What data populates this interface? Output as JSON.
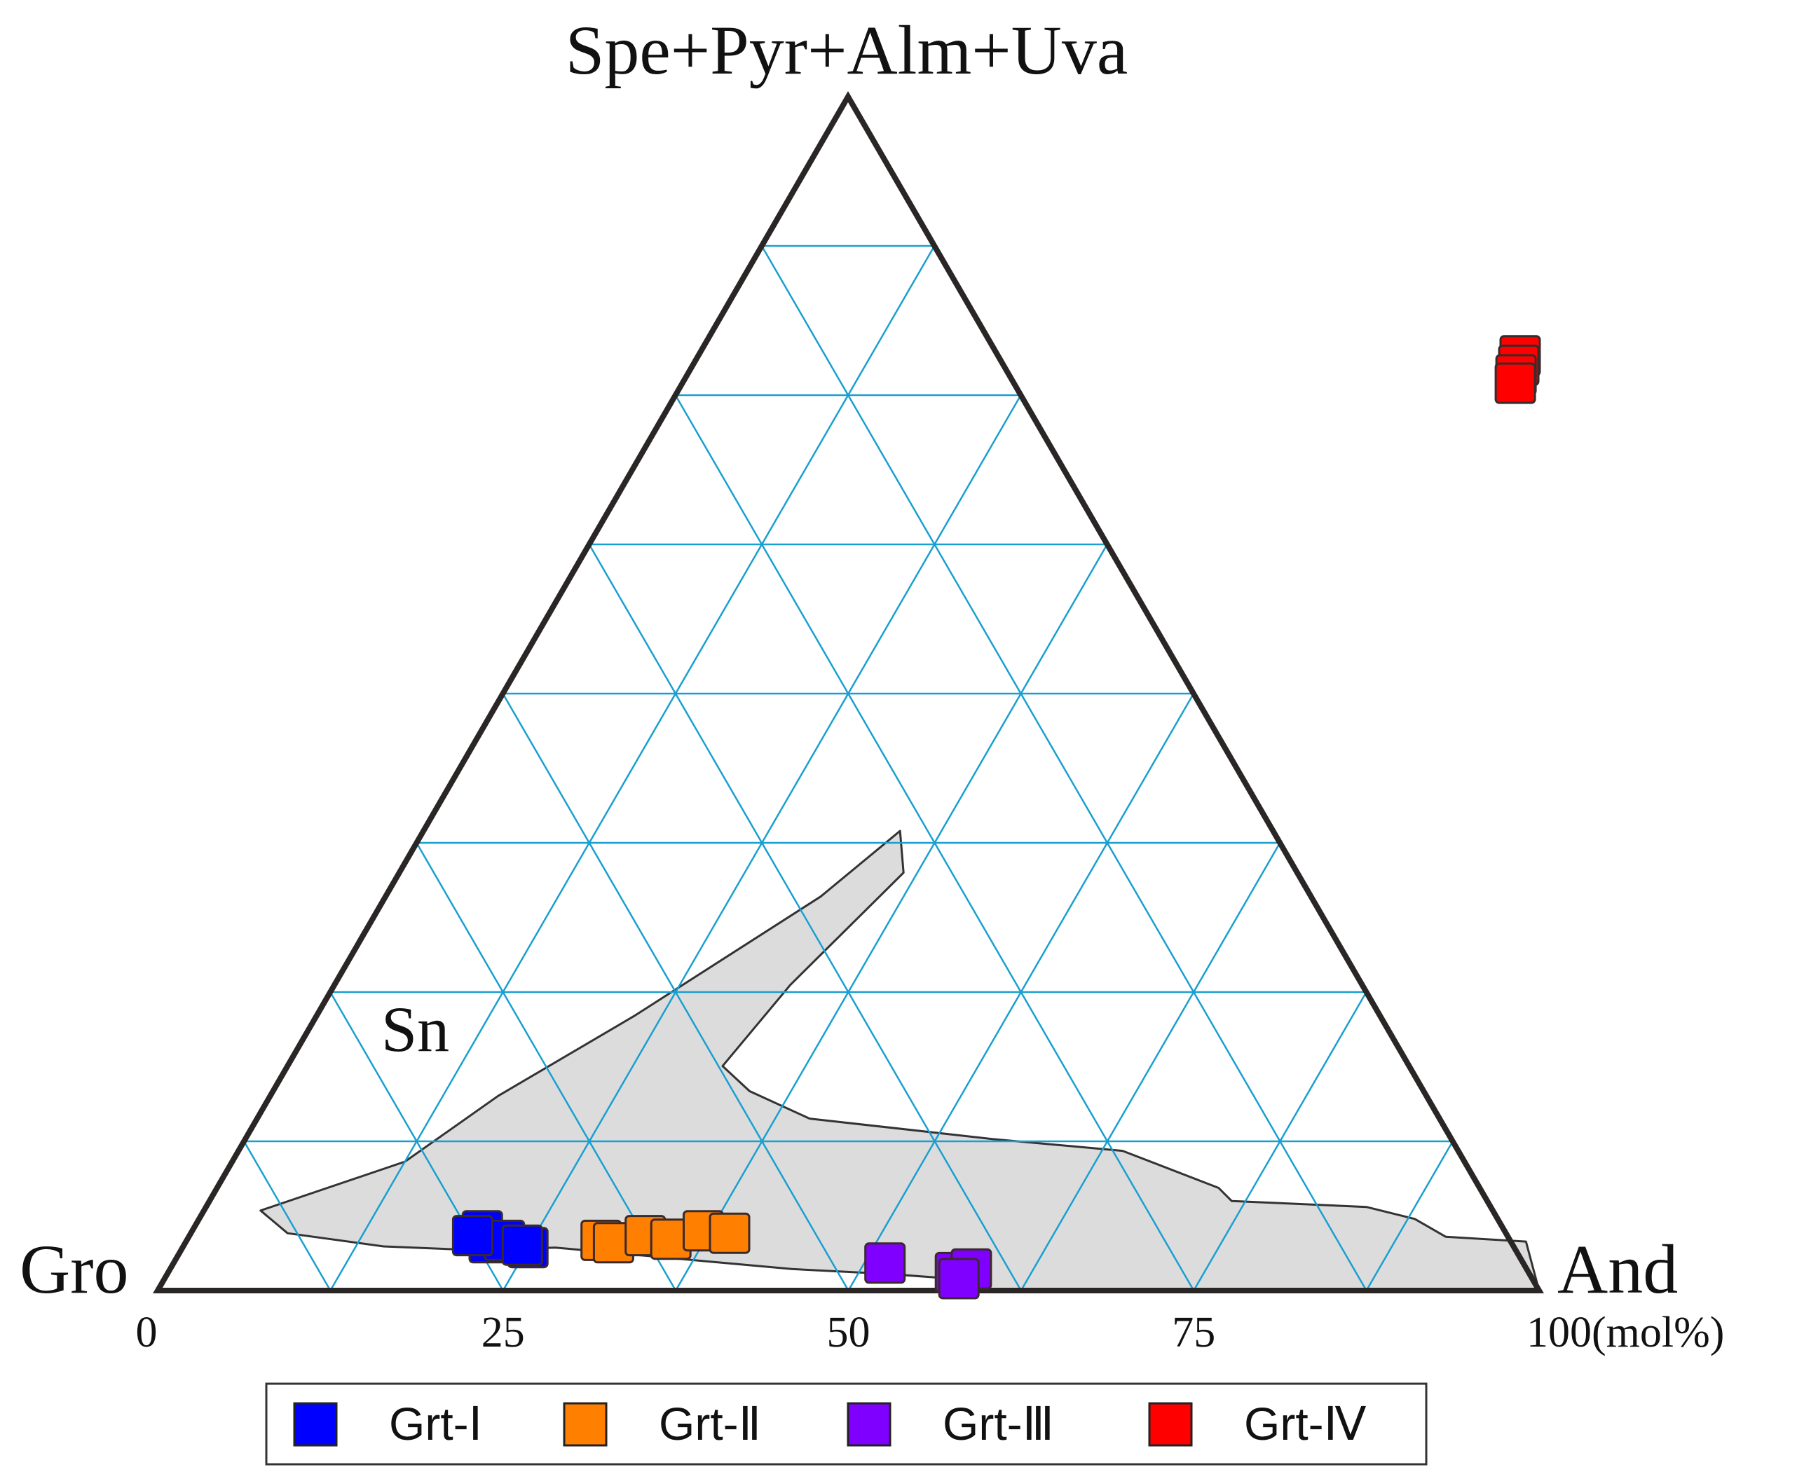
{
  "chart_data": {
    "type": "ternary-scatter",
    "vertices": {
      "top": "Spe+Pyr+Alm+Uva",
      "left": "Gro",
      "right": "And"
    },
    "axis": {
      "ticks": [
        {
          "value": 0,
          "label": "0"
        },
        {
          "value": 25,
          "label": "25"
        },
        {
          "value": 50,
          "label": "50"
        },
        {
          "value": 75,
          "label": "75"
        },
        {
          "value": 100,
          "label": "100(mol%)"
        }
      ],
      "range": [
        0,
        100
      ],
      "grid_step": 12.5,
      "grid": true
    },
    "region": {
      "label": "Sn",
      "outline": [
        {
          "and": 4.1,
          "sppa": 6.7
        },
        {
          "and": 7.0,
          "sppa": 4.8
        },
        {
          "and": 14.5,
          "sppa": 3.7
        },
        {
          "and": 21.0,
          "sppa": 3.4
        },
        {
          "and": 27.0,
          "sppa": 3.6
        },
        {
          "and": 33.0,
          "sppa": 3.0
        },
        {
          "and": 39.0,
          "sppa": 2.4
        },
        {
          "and": 45.0,
          "sppa": 1.8
        },
        {
          "and": 52.0,
          "sppa": 1.4
        },
        {
          "and": 57.0,
          "sppa": 1.0
        },
        {
          "and": 60.0,
          "sppa": 0.0
        },
        {
          "and": 100.0,
          "sppa": 0.0
        },
        {
          "and": 97.0,
          "sppa": 4.1
        },
        {
          "and": 91.0,
          "sppa": 4.5
        },
        {
          "and": 88.0,
          "sppa": 6.0
        },
        {
          "and": 84.0,
          "sppa": 7.0
        },
        {
          "and": 74.0,
          "sppa": 7.5
        },
        {
          "and": 72.5,
          "sppa": 8.6
        },
        {
          "and": 64.0,
          "sppa": 11.7
        },
        {
          "and": 54.0,
          "sppa": 12.7
        },
        {
          "and": 40.0,
          "sppa": 14.4
        },
        {
          "and": 34.5,
          "sppa": 16.7
        },
        {
          "and": 31.5,
          "sppa": 18.8
        },
        {
          "and": 33.0,
          "sppa": 25.6
        },
        {
          "and": 36.5,
          "sppa": 35.0
        },
        {
          "and": 34.5,
          "sppa": 38.5
        },
        {
          "and": 31.5,
          "sppa": 33.0
        },
        {
          "and": 23.0,
          "sppa": 23.0
        },
        {
          "and": 16.5,
          "sppa": 16.3
        },
        {
          "and": 12.5,
          "sppa": 10.8
        },
        {
          "and": 4.1,
          "sppa": 6.7
        }
      ],
      "fill": "#dcdcdc",
      "stroke": "#333333"
    },
    "series": [
      {
        "name": "Grt-I",
        "color": "#0000ff",
        "points": [
          {
            "and": 21.0,
            "sppa": 5.0
          },
          {
            "and": 22.0,
            "sppa": 4.0
          },
          {
            "and": 23.0,
            "sppa": 4.2
          },
          {
            "and": 25.0,
            "sppa": 3.6
          },
          {
            "and": 24.5,
            "sppa": 3.8
          },
          {
            "and": 20.5,
            "sppa": 4.6
          }
        ]
      },
      {
        "name": "Grt-II",
        "color": "#ff8000",
        "points": [
          {
            "and": 30.0,
            "sppa": 4.2
          },
          {
            "and": 31.0,
            "sppa": 4.0
          },
          {
            "and": 33.0,
            "sppa": 4.6
          },
          {
            "and": 35.0,
            "sppa": 4.3
          },
          {
            "and": 37.0,
            "sppa": 5.0
          },
          {
            "and": 39.0,
            "sppa": 4.8
          }
        ]
      },
      {
        "name": "Grt-III",
        "color": "#8000ff",
        "points": [
          {
            "and": 51.5,
            "sppa": 2.3
          },
          {
            "and": 57.0,
            "sppa": 1.5
          },
          {
            "and": 58.0,
            "sppa": 1.8
          },
          {
            "and": 57.5,
            "sppa": 1.0
          }
        ]
      },
      {
        "name": "Grt-IV",
        "color": "#ff0000",
        "points": [
          {
            "and": 59.5,
            "sppa": 78.3
          },
          {
            "and": 59.8,
            "sppa": 77.5
          },
          {
            "and": 60.0,
            "sppa": 76.7
          },
          {
            "and": 60.3,
            "sppa": 76.0
          }
        ]
      }
    ],
    "legend": {
      "placement": "bottom",
      "entries": [
        {
          "name": "Grt-Ⅰ",
          "color": "#0000ff"
        },
        {
          "name": "Grt-Ⅱ",
          "color": "#ff8000"
        },
        {
          "name": "Grt-Ⅲ",
          "color": "#8000ff"
        },
        {
          "name": "Grt-Ⅳ",
          "color": "#ff0000"
        }
      ]
    },
    "colors": {
      "frame": "#2a2626",
      "grid": "#1a9fd0",
      "marker_stroke": "#3a2a2a"
    }
  }
}
